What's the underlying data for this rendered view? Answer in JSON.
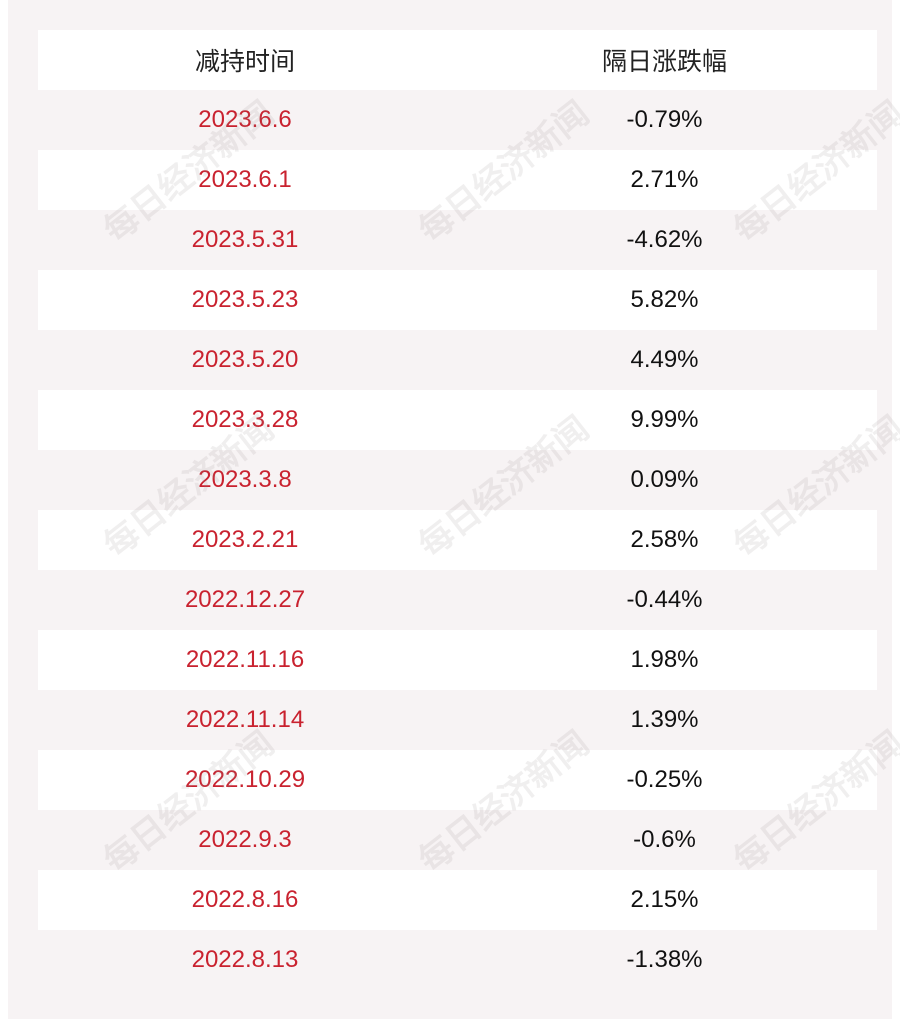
{
  "table": {
    "headers": [
      "减持时间",
      "隔日涨跌幅"
    ],
    "rows": [
      {
        "date": "2023.6.6",
        "change": "-0.79%"
      },
      {
        "date": "2023.6.1",
        "change": "2.71%"
      },
      {
        "date": "2023.5.31",
        "change": "-4.62%"
      },
      {
        "date": "2023.5.23",
        "change": "5.82%"
      },
      {
        "date": "2023.5.20",
        "change": "4.49%"
      },
      {
        "date": "2023.3.28",
        "change": "9.99%"
      },
      {
        "date": "2023.3.8",
        "change": "0.09%"
      },
      {
        "date": "2023.2.21",
        "change": "2.58%"
      },
      {
        "date": "2022.12.27",
        "change": "-0.44%"
      },
      {
        "date": "2022.11.16",
        "change": "1.98%"
      },
      {
        "date": "2022.11.14",
        "change": "1.39%"
      },
      {
        "date": "2022.10.29",
        "change": "-0.25%"
      },
      {
        "date": "2022.9.3",
        "change": "-0.6%"
      },
      {
        "date": "2022.8.16",
        "change": "2.15%"
      },
      {
        "date": "2022.8.13",
        "change": "-1.38%"
      }
    ]
  },
  "watermark": "每日经济新闻",
  "colors": {
    "date_text": "#c9222f",
    "value_text": "#111111",
    "stripe": "#f7f3f4"
  }
}
